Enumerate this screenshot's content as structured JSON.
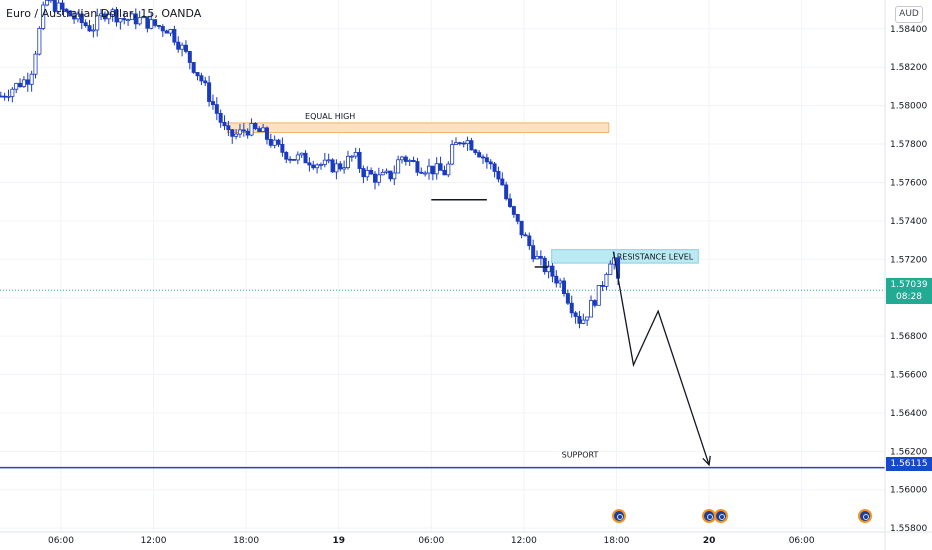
{
  "title": "Euro / Australian Dollar, 15, OANDA",
  "currency_badge": "AUD",
  "current_price": {
    "value": "1.57039",
    "countdown": "08:28"
  },
  "support_price": "1.56115",
  "annotations": {
    "equal_high": "EQUAL HIGH",
    "resistance": "RESISTANCE LEVEL",
    "support": "SUPPORT"
  },
  "colors": {
    "candle": "#1a3bbf",
    "equal_high_zone": "#fde2c0",
    "resistance_zone": "#bde9f2",
    "support_line": "#1848cc",
    "current_price": "#22ab94",
    "grid": "#f0f3fa"
  },
  "event_icon_name": "economic-event-flag-icon",
  "chart_data": {
    "type": "candlestick",
    "title": "Euro / Australian Dollar, 15, OANDA",
    "y_tick_labels": [
      "1.58400",
      "1.58200",
      "1.58000",
      "1.57800",
      "1.57600",
      "1.57400",
      "1.57200",
      "1.57000",
      "1.56800",
      "1.56600",
      "1.56400",
      "1.56200",
      "1.56000",
      "1.55800"
    ],
    "y_ticks": [
      1.584,
      1.582,
      1.58,
      1.578,
      1.576,
      1.574,
      1.572,
      1.57,
      1.568,
      1.566,
      1.564,
      1.562,
      1.56,
      1.558
    ],
    "ylim": [
      1.5578,
      1.5855
    ],
    "x_tick_labels": [
      "06:00",
      "12:00",
      "18:00",
      "19",
      "06:00",
      "12:00",
      "18:00",
      "20",
      "06:00"
    ],
    "x_ticks_hours": [
      6,
      12,
      18,
      24,
      30,
      36,
      42,
      48,
      54
    ],
    "xlim_hours": [
      2.05,
      59.4
    ],
    "grid": true,
    "anchors": [
      [
        2.1,
        1.5805
      ],
      [
        3.0,
        1.581
      ],
      [
        4.0,
        1.5815
      ],
      [
        5.0,
        1.5855
      ],
      [
        6.0,
        1.585
      ],
      [
        7.0,
        1.5845
      ],
      [
        8.0,
        1.584
      ],
      [
        9.0,
        1.585
      ],
      [
        10.0,
        1.5845
      ],
      [
        11.0,
        1.5845
      ],
      [
        12.0,
        1.5842
      ],
      [
        13.0,
        1.584
      ],
      [
        14.0,
        1.5828
      ],
      [
        15.0,
        1.5815
      ],
      [
        16.0,
        1.5798
      ],
      [
        16.8,
        1.5784
      ],
      [
        17.5,
        1.5785
      ],
      [
        18.0,
        1.5788
      ],
      [
        19.0,
        1.5786
      ],
      [
        20.0,
        1.5778
      ],
      [
        21.0,
        1.5773
      ],
      [
        22.0,
        1.5772
      ],
      [
        23.0,
        1.5769
      ],
      [
        24.0,
        1.5768
      ],
      [
        25.0,
        1.5774
      ],
      [
        25.5,
        1.5766
      ],
      [
        26.5,
        1.5762
      ],
      [
        27.5,
        1.5764
      ],
      [
        28.0,
        1.5774
      ],
      [
        29.0,
        1.5769
      ],
      [
        30.0,
        1.5767
      ],
      [
        31.0,
        1.5765
      ],
      [
        31.3,
        1.5776
      ],
      [
        32.0,
        1.5784
      ],
      [
        33.0,
        1.5777
      ],
      [
        34.0,
        1.5767
      ],
      [
        34.5,
        1.5762
      ],
      [
        35.0,
        1.5747
      ],
      [
        36.0,
        1.5732
      ],
      [
        36.5,
        1.5725
      ],
      [
        37.0,
        1.5718
      ],
      [
        38.5,
        1.5707
      ],
      [
        39.0,
        1.5697
      ],
      [
        39.7,
        1.5687
      ],
      [
        40.5,
        1.5698
      ],
      [
        41.0,
        1.5705
      ],
      [
        41.5,
        1.5719
      ],
      [
        41.8,
        1.5723
      ],
      [
        42.1,
        1.5707
      ]
    ],
    "drawn_path_hours_price": [
      [
        41.8,
        1.5724
      ],
      [
        43.1,
        1.5665
      ],
      [
        44.7,
        1.5693
      ],
      [
        48.0,
        1.5613
      ]
    ],
    "equal_high_zone": {
      "x_hours": [
        16.8,
        41.5
      ],
      "y": [
        1.5786,
        1.5791
      ]
    },
    "resistance_zone": {
      "x_hours": [
        37.8,
        47.3
      ],
      "y": [
        1.5718,
        1.5725
      ]
    },
    "support_level": 1.56115,
    "current_level": 1.57039,
    "swing_lines": [
      {
        "x_hours": [
          30.0,
          33.6
        ],
        "y": 1.5751
      },
      {
        "x_hours": [
          36.7,
          37.6
        ],
        "y": 1.5716
      }
    ],
    "event_markers_hours": [
      42.15,
      48.0,
      48.75,
      58.1
    ]
  }
}
